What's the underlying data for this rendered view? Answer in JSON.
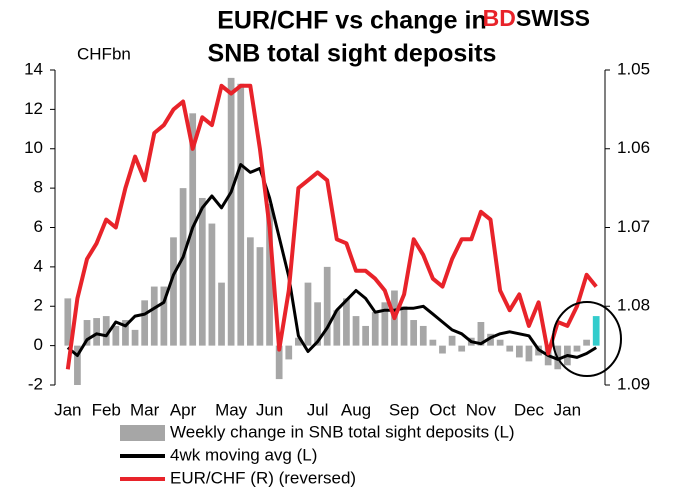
{
  "chart_data": {
    "type": "combo",
    "title": [
      "EUR/CHF vs change in",
      "SNB total sight deposits"
    ],
    "brand": [
      "BD",
      "SWISS"
    ],
    "y_label": "CHFbn",
    "categories": [
      "Jan",
      null,
      null,
      null,
      "Feb",
      null,
      null,
      null,
      "Mar",
      null,
      null,
      null,
      "Apr",
      null,
      null,
      null,
      null,
      "May",
      null,
      null,
      null,
      "Jun",
      null,
      null,
      null,
      null,
      "Jul",
      null,
      null,
      null,
      "Aug",
      null,
      null,
      null,
      null,
      "Sep",
      null,
      null,
      null,
      "Oct",
      null,
      null,
      null,
      "Nov",
      null,
      null,
      null,
      null,
      "Dec",
      null,
      null,
      null,
      "Jan",
      null,
      null,
      null
    ],
    "ylim": [
      -2,
      14
    ],
    "yticks": [
      -2,
      0,
      2,
      4,
      6,
      8,
      10,
      12,
      14
    ],
    "y2lim": [
      1.05,
      1.09
    ],
    "y2ticks": [
      1.05,
      1.06,
      1.07,
      1.08,
      1.09
    ],
    "y2_reversed": true,
    "series": [
      {
        "name": "Weekly change in SNB total sight deposits (L)",
        "type": "bar",
        "color": "#a6a6a6",
        "colors": [
          "#a6a6a6",
          "#a6a6a6",
          "#a6a6a6",
          "#a6a6a6",
          "#a6a6a6",
          "#a6a6a6",
          "#a6a6a6",
          "#a6a6a6",
          "#a6a6a6",
          "#a6a6a6",
          "#a6a6a6",
          "#a6a6a6",
          "#a6a6a6",
          "#a6a6a6",
          "#a6a6a6",
          "#a6a6a6",
          "#a6a6a6",
          "#a6a6a6",
          "#a6a6a6",
          "#a6a6a6",
          "#a6a6a6",
          "#a6a6a6",
          "#a6a6a6",
          "#a6a6a6",
          "#a6a6a6",
          "#a6a6a6",
          "#a6a6a6",
          "#a6a6a6",
          "#a6a6a6",
          "#a6a6a6",
          "#a6a6a6",
          "#a6a6a6",
          "#a6a6a6",
          "#a6a6a6",
          "#a6a6a6",
          "#a6a6a6",
          "#a6a6a6",
          "#a6a6a6",
          "#a6a6a6",
          "#a6a6a6",
          "#a6a6a6",
          "#a6a6a6",
          "#a6a6a6",
          "#a6a6a6",
          "#a6a6a6",
          "#a6a6a6",
          "#a6a6a6",
          "#a6a6a6",
          "#a6a6a6",
          "#a6a6a6",
          "#a6a6a6",
          "#a6a6a6",
          "#a6a6a6",
          "#a6a6a6",
          "#a6a6a6",
          "#33cccc"
        ],
        "values": [
          2.4,
          -2.0,
          1.3,
          1.4,
          1.5,
          1.0,
          1.3,
          0.8,
          2.3,
          3.0,
          3.0,
          5.5,
          8.0,
          11.8,
          7.5,
          6.2,
          3.2,
          13.6,
          13.3,
          5.5,
          5.0,
          7.2,
          -1.7,
          -0.7,
          0.4,
          3.2,
          2.2,
          4.0,
          1.8,
          2.4,
          1.5,
          1.0,
          1.7,
          2.2,
          2.8,
          2.0,
          1.3,
          1.0,
          0.3,
          -0.4,
          0.5,
          -0.3,
          0.4,
          1.2,
          0.6,
          0.3,
          -0.3,
          -0.6,
          -0.8,
          -0.5,
          -1.0,
          -1.2,
          -1.0,
          -0.3,
          0.3,
          1.5
        ]
      },
      {
        "name": "4wk moving avg (L)",
        "type": "line",
        "color": "#000000",
        "values": [
          -0.1,
          -0.5,
          0.3,
          0.6,
          0.5,
          1.2,
          1.0,
          1.5,
          1.6,
          1.9,
          2.2,
          3.6,
          4.5,
          6.0,
          7.0,
          7.6,
          7.0,
          7.8,
          9.2,
          8.8,
          9.0,
          7.5,
          5.5,
          3.5,
          0.5,
          -0.3,
          0.2,
          0.9,
          1.8,
          2.3,
          2.8,
          2.4,
          1.7,
          1.8,
          1.8,
          1.9,
          1.9,
          2.0,
          1.6,
          1.2,
          0.8,
          0.6,
          0.2,
          0.1,
          0.4,
          0.6,
          0.7,
          0.6,
          0.5,
          -0.2,
          -0.5,
          -0.7,
          -0.5,
          -0.6,
          -0.4,
          -0.1
        ]
      },
      {
        "name": "EUR/CHF (R) (reversed)",
        "type": "line",
        "axis": "y2",
        "color": "#e8232a",
        "values": [
          1.088,
          1.079,
          1.074,
          1.072,
          1.069,
          1.07,
          1.065,
          1.061,
          1.064,
          1.058,
          1.057,
          1.055,
          1.054,
          1.06,
          1.056,
          1.057,
          1.052,
          1.053,
          1.052,
          1.052,
          1.06,
          1.07,
          1.0855,
          1.078,
          1.065,
          1.064,
          1.063,
          1.064,
          1.0715,
          1.072,
          1.0755,
          1.0755,
          1.0765,
          1.078,
          1.0815,
          1.0785,
          1.0715,
          1.0735,
          1.0765,
          1.0775,
          1.074,
          1.0715,
          1.0715,
          1.068,
          1.069,
          1.078,
          1.0805,
          1.0785,
          1.0825,
          1.0795,
          1.086,
          1.082,
          1.0825,
          1.08,
          1.076,
          1.0775
        ]
      }
    ]
  }
}
